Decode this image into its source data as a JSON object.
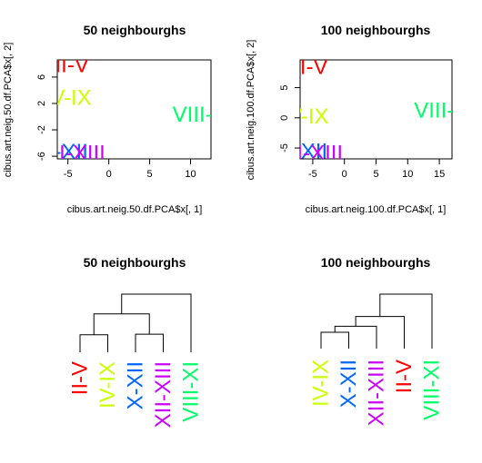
{
  "chart_data": [
    {
      "type": "scatter",
      "title": "50 neighbourghs",
      "xlabel": "cibus.art.neig.50.df.PCA$x[, 1]",
      "ylabel": "cibus.art.neig.50.df.PCA$x[, 2]",
      "xlim": [
        -6.3,
        12.5
      ],
      "ylim": [
        -6.4,
        8.6
      ],
      "xticks": [
        "-5",
        "0",
        "5",
        "10"
      ],
      "xtick_values": [
        -5,
        0,
        5,
        10
      ],
      "yticks": [
        "-6",
        "-2",
        "2",
        "6"
      ],
      "ytick_values": [
        -6,
        -2,
        2,
        6
      ],
      "points": [
        {
          "label": "II-V",
          "x": -4.5,
          "y": 7.8,
          "color": "#ff0000"
        },
        {
          "label": "IV-IX",
          "x": -5.0,
          "y": 2.8,
          "color": "#ccff00"
        },
        {
          "label": "VIII-XI",
          "x": 11.5,
          "y": 0.3,
          "color": "#00ff66"
        },
        {
          "label": "X-XII",
          "x": -5.5,
          "y": -5.4,
          "color": "#0066ff"
        },
        {
          "label": "XII-XIII",
          "x": -4.5,
          "y": -5.6,
          "color": "#cc00ff"
        }
      ]
    },
    {
      "type": "scatter",
      "title": "100 neighbourghs",
      "xlabel": "cibus.art.neig.100.df.PCA$x[, 1]",
      "ylabel": "cibus.art.neig.100.df.PCA$x[, 2]",
      "xlim": [
        -7.0,
        17.0
      ],
      "ylim": [
        -6.8,
        9.6
      ],
      "xticks": [
        "-5",
        "0",
        "5",
        "10",
        "15"
      ],
      "xtick_values": [
        -5,
        0,
        5,
        10,
        15
      ],
      "yticks": [
        "-5",
        "0",
        "5"
      ],
      "ytick_values": [
        -5,
        0,
        5
      ],
      "points": [
        {
          "label": "II-V",
          "x": -5.3,
          "y": 8.4,
          "color": "#ff0000"
        },
        {
          "label": "IV-IX",
          "x": -6.2,
          "y": 0.2,
          "color": "#ccff00"
        },
        {
          "label": "VIII-XI",
          "x": 15.8,
          "y": 1.2,
          "color": "#00ff66"
        },
        {
          "label": "X-XII",
          "x": -6.5,
          "y": -5.6,
          "color": "#0066ff"
        },
        {
          "label": "XII-XIII",
          "x": -5.5,
          "y": -5.9,
          "color": "#cc00ff"
        }
      ]
    },
    {
      "type": "dendrogram",
      "title": "50 neighbourghs",
      "leaves": [
        {
          "label": "II-V",
          "color": "#ff0000"
        },
        {
          "label": "IV-IX",
          "color": "#ccff00"
        },
        {
          "label": "X-XII",
          "color": "#0066ff"
        },
        {
          "label": "XII-XIII",
          "color": "#cc00ff"
        },
        {
          "label": "VIII-XI",
          "color": "#00ff66"
        }
      ],
      "merges": [
        {
          "a": "leaf:0",
          "b": "leaf:1",
          "height": 3.0
        },
        {
          "a": "leaf:2",
          "b": "leaf:3",
          "height": 3.1
        },
        {
          "a": "node:0",
          "b": "node:1",
          "height": 6.6
        },
        {
          "a": "node:2",
          "b": "leaf:4",
          "height": 10.0
        }
      ]
    },
    {
      "type": "dendrogram",
      "title": "100 neighbourghs",
      "leaves": [
        {
          "label": "IV-IX",
          "color": "#ccff00"
        },
        {
          "label": "X-XII",
          "color": "#0066ff"
        },
        {
          "label": "XII-XIII",
          "color": "#cc00ff"
        },
        {
          "label": "II-V",
          "color": "#ff0000"
        },
        {
          "label": "VIII-XI",
          "color": "#00ff66"
        }
      ],
      "merges": [
        {
          "a": "leaf:0",
          "b": "leaf:1",
          "height": 3.0
        },
        {
          "a": "node:0",
          "b": "leaf:2",
          "height": 4.1
        },
        {
          "a": "node:1",
          "b": "leaf:3",
          "height": 5.9
        },
        {
          "a": "node:2",
          "b": "leaf:4",
          "height": 10.0
        }
      ]
    }
  ]
}
